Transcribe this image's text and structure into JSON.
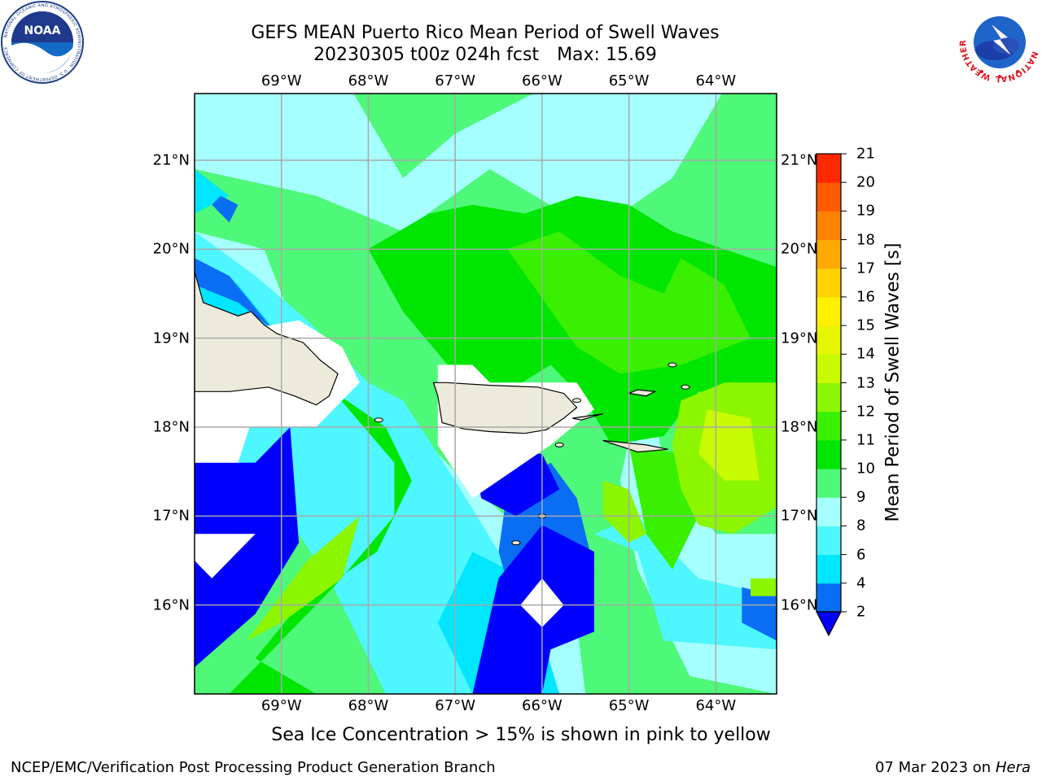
{
  "header": {
    "title_line1": "GEFS MEAN Puerto Rico Mean Period of Swell Waves",
    "title_line2_date": "20230305 t00z 024h fcst",
    "title_line2_max": "Max: 15.69"
  },
  "logos": {
    "left": "NOAA",
    "left_ring_text": "NATIONAL OCEANIC AND ATMOSPHERIC ADMINISTRATION · U.S. DEPARTMENT OF COMMERCE",
    "right_ring_text": "NATIONAL WEATHER SERVICE"
  },
  "map": {
    "lon_labels": [
      "69°W",
      "68°W",
      "67°W",
      "66°W",
      "65°W",
      "64°W"
    ],
    "lon_values": [
      -69,
      -68,
      -67,
      -66,
      -65,
      -64
    ],
    "lat_labels": [
      "21°N",
      "20°N",
      "19°N",
      "18°N",
      "17°N",
      "16°N"
    ],
    "lat_values": [
      21,
      20,
      19,
      18,
      17,
      16
    ],
    "extent": {
      "lon_min": -70.0,
      "lon_max": -63.3,
      "lat_min": 15.0,
      "lat_max": 21.75
    },
    "grid": true,
    "colors": {
      "land": "#eeeadb",
      "coast": "#000000",
      "grid": "#a8a8a8",
      "no_data": "#ffffff"
    }
  },
  "colorbar": {
    "label": "Mean Period of Swell Waves [s]",
    "levels": [
      2,
      4,
      6,
      8,
      9,
      10,
      11,
      12,
      13,
      14,
      15,
      16,
      17,
      18,
      19,
      20,
      21
    ],
    "tick_labels": [
      "2",
      "4",
      "6",
      "8",
      "9",
      "10",
      "11",
      "12",
      "13",
      "14",
      "15",
      "16",
      "17",
      "18",
      "19",
      "20",
      "21"
    ],
    "colors": [
      "#0a6ef5",
      "#00e6ff",
      "#4ef6ff",
      "#a6ffff",
      "#4ef878",
      "#00e600",
      "#38f000",
      "#8cf500",
      "#c8fa00",
      "#e6f500",
      "#fff000",
      "#ffd200",
      "#ffaa00",
      "#ff8200",
      "#ff5a00",
      "#ff2800"
    ],
    "under_color": "#0000ff",
    "extend": "min"
  },
  "note": "Sea Ice Concentration > 15% is shown in pink to yellow",
  "footer": {
    "left": "NCEP/EMC/Verification Post Processing Product Generation Branch",
    "right_date": "07 Mar 2023 on",
    "right_host": "Hera"
  }
}
